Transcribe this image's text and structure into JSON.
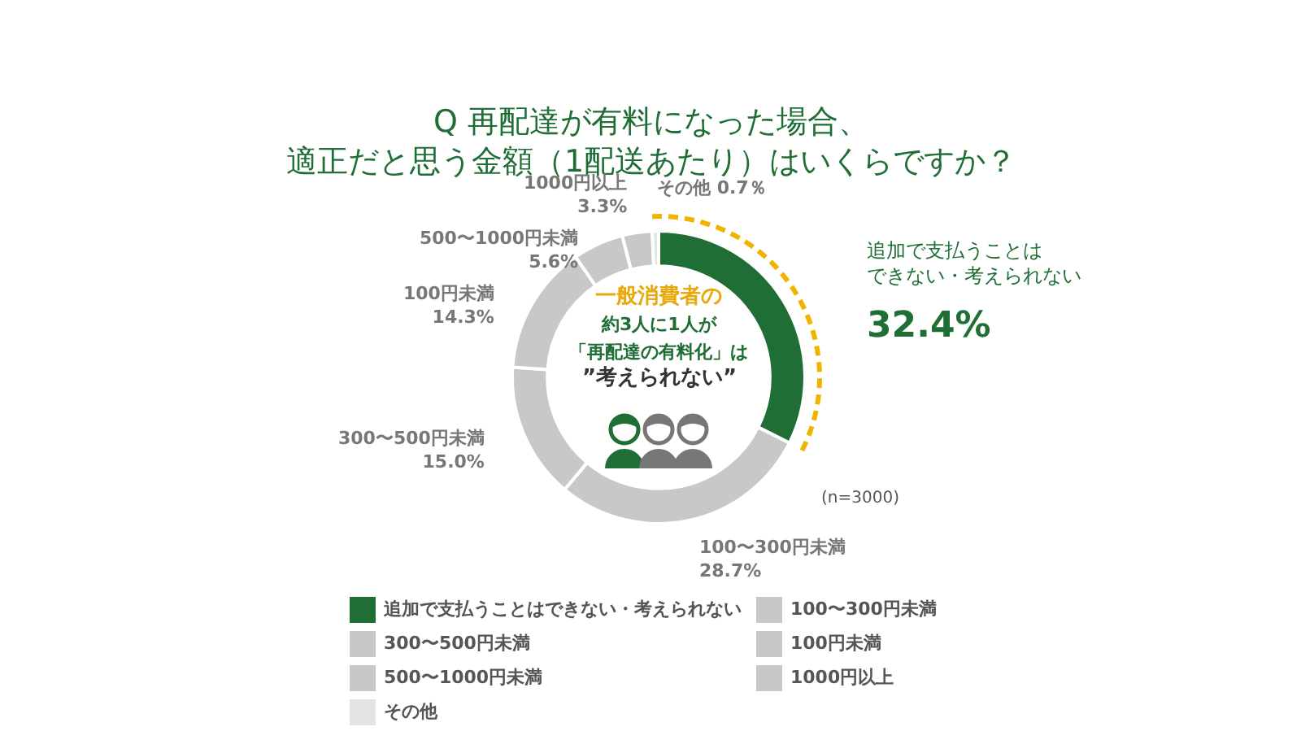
{
  "chart_data": {
    "type": "donut",
    "title": "Q 再配達が有料になった場合、適正だと思う金額（1配送あたり）はいくらですか？",
    "categories": [
      "追加で支払うことはできない・考えられない",
      "100〜300円未満",
      "300〜500円未満",
      "100円未満",
      "500〜1000円未満",
      "1000円以上",
      "その他"
    ],
    "values": [
      32.4,
      28.7,
      15.0,
      14.3,
      5.6,
      3.3,
      0.7
    ],
    "value_labels": [
      "32.4%",
      "28.7%",
      "15.0%",
      "14.3%",
      "5.6%",
      "3.3%",
      "0.7％"
    ],
    "colors": [
      "#1f6e35",
      "#c8c8c8",
      "#c8c8c8",
      "#c8c8c8",
      "#c8c8c8",
      "#c8c8c8",
      "#e3e3e3"
    ],
    "legend": "bottom",
    "annotations": [
      "一般消費者の",
      "約3人に1人が",
      "「再配達の有料化」は",
      "”考えられない”",
      "(n=3000)"
    ]
  }
}
